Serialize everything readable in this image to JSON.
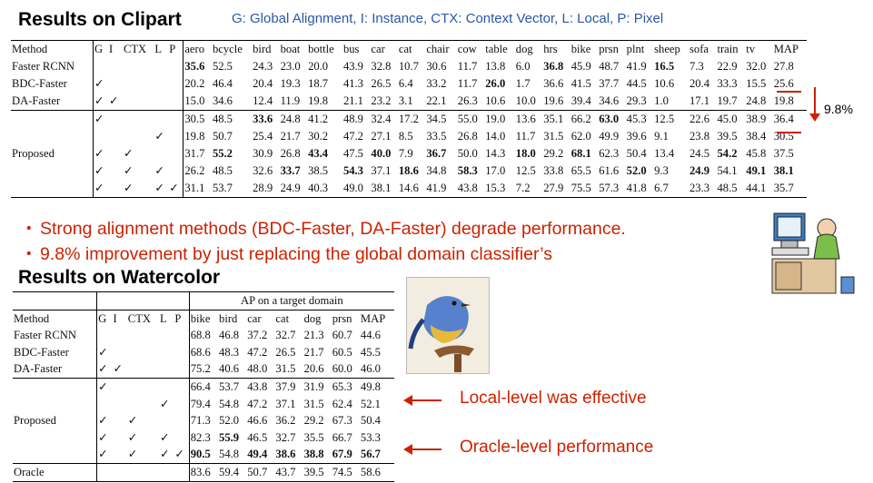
{
  "clipart": {
    "title": "Results on Clipart",
    "legend": "G: Global Alignment, I: Instance, CTX: Context Vector, L: Local, P: Pixel",
    "headers": [
      "Method",
      "G",
      "I",
      "CTX",
      "L",
      "P",
      "aero",
      "bcycle",
      "bird",
      "boat",
      "bottle",
      "bus",
      "car",
      "cat",
      "chair",
      "cow",
      "table",
      "dog",
      "hrs",
      "bike",
      "prsn",
      "plnt",
      "sheep",
      "sofa",
      "train",
      "tv",
      "MAP"
    ],
    "rows": [
      {
        "method": "Faster RCNN",
        "g": "",
        "i": "",
        "ctx": "",
        "l": "",
        "p": "",
        "values": [
          "35.6",
          "52.5",
          "24.3",
          "23.0",
          "20.0",
          "43.9",
          "32.8",
          "10.7",
          "30.6",
          "11.7",
          "13.8",
          "6.0",
          "36.8",
          "45.9",
          "48.7",
          "41.9",
          "16.5",
          "7.3",
          "22.9",
          "32.0",
          "27.8"
        ],
        "bold": [
          0,
          12,
          16
        ]
      },
      {
        "method": "BDC-Faster",
        "g": "✓",
        "i": "",
        "ctx": "",
        "l": "",
        "p": "",
        "values": [
          "20.2",
          "46.4",
          "20.4",
          "19.3",
          "18.7",
          "41.3",
          "26.5",
          "6.4",
          "33.2",
          "11.7",
          "26.0",
          "1.7",
          "36.6",
          "41.5",
          "37.7",
          "44.5",
          "10.6",
          "20.4",
          "33.3",
          "15.5",
          "25.6"
        ],
        "bold": [
          10
        ]
      },
      {
        "method": "DA-Faster",
        "g": "✓",
        "i": "✓",
        "ctx": "",
        "l": "",
        "p": "",
        "values": [
          "15.0",
          "34.6",
          "12.4",
          "11.9",
          "19.8",
          "21.1",
          "23.2",
          "3.1",
          "22.1",
          "26.3",
          "10.6",
          "10.0",
          "19.6",
          "39.4",
          "34.6",
          "29.3",
          "1.0",
          "17.1",
          "19.7",
          "24.8",
          "19.8"
        ],
        "bold": []
      },
      {
        "method": "",
        "g": "✓",
        "i": "",
        "ctx": "",
        "l": "",
        "p": "",
        "values": [
          "30.5",
          "48.5",
          "33.6",
          "24.8",
          "41.2",
          "48.9",
          "32.4",
          "17.2",
          "34.5",
          "55.0",
          "19.0",
          "13.6",
          "35.1",
          "66.2",
          "63.0",
          "45.3",
          "12.5",
          "22.6",
          "45.0",
          "38.9",
          "36.4"
        ],
        "bold": [
          2,
          14
        ]
      },
      {
        "method": "",
        "g": "",
        "i": "",
        "ctx": "",
        "l": "✓",
        "p": "",
        "values": [
          "19.8",
          "50.7",
          "25.4",
          "21.7",
          "30.2",
          "47.2",
          "27.1",
          "8.5",
          "33.5",
          "26.8",
          "14.0",
          "11.7",
          "31.5",
          "62.0",
          "49.9",
          "39.6",
          "9.1",
          "23.8",
          "39.5",
          "38.4",
          "30.5"
        ],
        "bold": []
      },
      {
        "method": "Proposed",
        "g": "✓",
        "i": "",
        "ctx": "✓",
        "l": "",
        "p": "",
        "values": [
          "31.7",
          "55.2",
          "30.9",
          "26.8",
          "43.4",
          "47.5",
          "40.0",
          "7.9",
          "36.7",
          "50.0",
          "14.3",
          "18.0",
          "29.2",
          "68.1",
          "62.3",
          "50.4",
          "13.4",
          "24.5",
          "54.2",
          "45.8",
          "37.5"
        ],
        "bold": [
          1,
          4,
          6,
          8,
          11,
          13,
          18
        ]
      },
      {
        "method": "",
        "g": "✓",
        "i": "",
        "ctx": "✓",
        "l": "✓",
        "p": "",
        "values": [
          "26.2",
          "48.5",
          "32.6",
          "33.7",
          "38.5",
          "54.3",
          "37.1",
          "18.6",
          "34.8",
          "58.3",
          "17.0",
          "12.5",
          "33.8",
          "65.5",
          "61.6",
          "52.0",
          "9.3",
          "24.9",
          "54.1",
          "49.1",
          "38.1"
        ],
        "bold": [
          3,
          5,
          7,
          9,
          15,
          17,
          19,
          20
        ]
      },
      {
        "method": "",
        "g": "✓",
        "i": "",
        "ctx": "✓",
        "l": "✓",
        "p": "✓",
        "values": [
          "31.1",
          "53.7",
          "28.9",
          "24.9",
          "40.3",
          "49.0",
          "38.1",
          "14.6",
          "41.9",
          "43.8",
          "15.3",
          "7.2",
          "27.9",
          "75.5",
          "57.3",
          "41.8",
          "6.7",
          "23.3",
          "48.5",
          "44.1",
          "35.7"
        ],
        "bold": []
      }
    ]
  },
  "bullets": [
    "Strong alignment methods (BDC-Faster, DA-Faster) degrade performance.",
    "9.8% improvement by just replacing the global domain classifier’s"
  ],
  "bullet_marker": "・",
  "improvement_label": "9.8%",
  "watercolor": {
    "title": "Results on Watercolor",
    "group_header": "AP on a target domain",
    "headers": [
      "Method",
      "G",
      "I",
      "CTX",
      "L",
      "P",
      "bike",
      "bird",
      "car",
      "cat",
      "dog",
      "prsn",
      "MAP"
    ],
    "rows": [
      {
        "method": "Faster RCNN",
        "g": "",
        "i": "",
        "ctx": "",
        "l": "",
        "p": "",
        "values": [
          "68.8",
          "46.8",
          "37.2",
          "32.7",
          "21.3",
          "60.7",
          "44.6"
        ],
        "bold": []
      },
      {
        "method": "BDC-Faster",
        "g": "✓",
        "i": "",
        "ctx": "",
        "l": "",
        "p": "",
        "values": [
          "68.6",
          "48.3",
          "47.2",
          "26.5",
          "21.7",
          "60.5",
          "45.5"
        ],
        "bold": []
      },
      {
        "method": "DA-Faster",
        "g": "✓",
        "i": "✓",
        "ctx": "",
        "l": "",
        "p": "",
        "values": [
          "75.2",
          "40.6",
          "48.0",
          "31.5",
          "20.6",
          "60.0",
          "46.0"
        ],
        "bold": []
      },
      {
        "method": "",
        "g": "✓",
        "i": "",
        "ctx": "",
        "l": "",
        "p": "",
        "values": [
          "66.4",
          "53.7",
          "43.8",
          "37.9",
          "31.9",
          "65.3",
          "49.8"
        ],
        "bold": []
      },
      {
        "method": "",
        "g": "",
        "i": "",
        "ctx": "",
        "l": "✓",
        "p": "",
        "values": [
          "79.4",
          "54.8",
          "47.2",
          "37.1",
          "31.5",
          "62.4",
          "52.1"
        ],
        "bold": []
      },
      {
        "method": "Proposed",
        "g": "✓",
        "i": "",
        "ctx": "✓",
        "l": "",
        "p": "",
        "values": [
          "71.3",
          "52.0",
          "46.6",
          "36.2",
          "29.2",
          "67.3",
          "50.4"
        ],
        "bold": []
      },
      {
        "method": "",
        "g": "✓",
        "i": "",
        "ctx": "✓",
        "l": "✓",
        "p": "",
        "values": [
          "82.3",
          "55.9",
          "46.5",
          "32.7",
          "35.5",
          "66.7",
          "53.3"
        ],
        "bold": [
          1
        ]
      },
      {
        "method": "",
        "g": "✓",
        "i": "",
        "ctx": "✓",
        "l": "✓",
        "p": "✓",
        "values": [
          "90.5",
          "54.8",
          "49.4",
          "38.6",
          "38.8",
          "67.9",
          "56.7"
        ],
        "bold": [
          0,
          2,
          3,
          4,
          5,
          6
        ]
      },
      {
        "method": "Oracle",
        "g": "",
        "i": "",
        "ctx": "",
        "l": "",
        "p": "",
        "values": [
          "83.6",
          "59.4",
          "50.7",
          "43.7",
          "39.5",
          "74.5",
          "58.6"
        ],
        "bold": []
      }
    ]
  },
  "annotations": {
    "local": "Local-level was effective",
    "oracle": "Oracle-level performance"
  },
  "colors": {
    "accent_red": "#cc2200",
    "legend_blue": "#2a57a8"
  },
  "icons": [
    "office-worker-clipart-icon",
    "watercolor-bird-icon"
  ]
}
